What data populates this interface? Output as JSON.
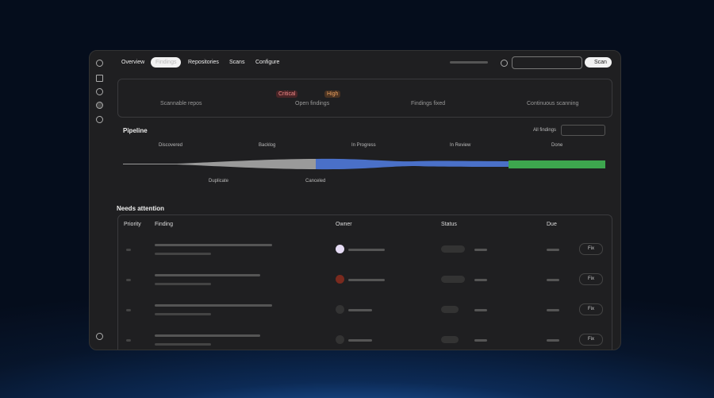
{
  "nav": {
    "tabs": [
      "Overview",
      "Findings",
      "Repositories",
      "Scans",
      "Configure"
    ],
    "scan_button": "Scan"
  },
  "stats": {
    "repos": "Scannable repos",
    "critical": "Critical",
    "high": "High",
    "open": "Open findings",
    "fixed": "Findings fixed",
    "continuous": "Continuous scanning"
  },
  "pipeline": {
    "title": "Pipeline",
    "filter": "All findings",
    "stages": [
      "Discovered",
      "Backlog",
      "In Progress",
      "In Review",
      "Done"
    ],
    "side_stages": [
      "Duplicate",
      "Canceled"
    ]
  },
  "attention": {
    "title": "Needs attention",
    "columns": [
      "Priority",
      "Finding",
      "Owner",
      "Status",
      "Due"
    ],
    "rows": [
      {
        "action": "Fix"
      },
      {
        "action": "Fix"
      },
      {
        "action": "Fix"
      },
      {
        "action": "Fix"
      }
    ]
  }
}
